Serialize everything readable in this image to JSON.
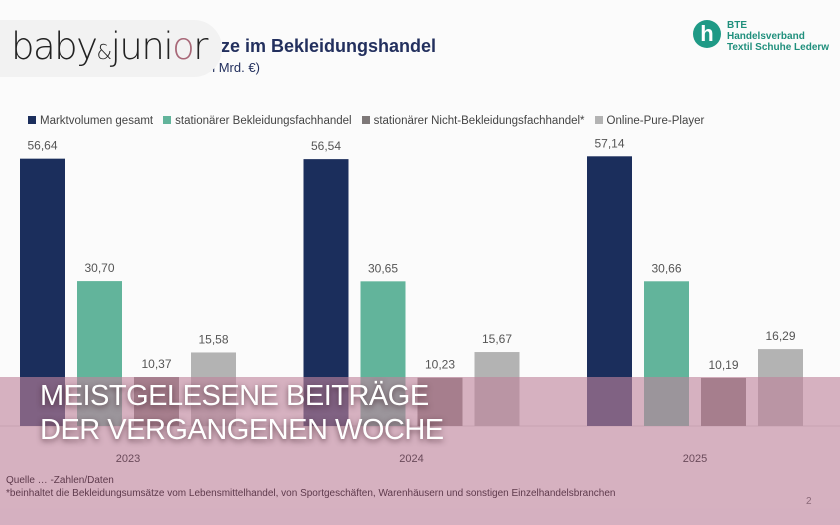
{
  "brand": {
    "logo_text": "baby&junior"
  },
  "slide": {
    "title_fragment": "ätze im Bekleidungshandel",
    "subtitle_fragment": "in Mrd. €)",
    "bte_logo": {
      "lines": [
        "BTE",
        "Handelsverband",
        "Textil  Schuhe  Lederw"
      ],
      "mark": "h"
    },
    "source_line": "Quelle … -Zahlen/Daten",
    "footnote": "*beinhaltet die Bekleidungsumsätze vom Lebensmittelhandel, von Sportgeschäften, Warenhäusern und sonstigen Einzelhandelsbranchen",
    "page_number": "2"
  },
  "overlay": {
    "line1": "MEISTGELESENE BEITRÄGE",
    "line2": "DER VERGANGENEN WOCHE"
  },
  "chart_data": {
    "type": "bar",
    "categories": [
      "2023",
      "2024",
      "2025"
    ],
    "series": [
      {
        "name": "Marktvolumen gesamt",
        "color": "#1b2e5c",
        "values": [
          56.64,
          56.54,
          57.14
        ],
        "labels": [
          "56,64",
          "56,54",
          "57,14"
        ]
      },
      {
        "name": "stationärer Bekleidungsfachhandel",
        "color": "#62b49b",
        "values": [
          30.7,
          30.65,
          30.66
        ],
        "labels": [
          "30,70",
          "30,65",
          "30,66"
        ]
      },
      {
        "name": "stationärer Nicht-Bekleidungsfachhandel*",
        "color": "#7e7878",
        "values": [
          10.37,
          10.23,
          10.19
        ],
        "labels": [
          "10,37",
          "10,23",
          "10,19"
        ]
      },
      {
        "name": "Online-Pure-Player",
        "color": "#b3b3b3",
        "values": [
          15.58,
          15.67,
          16.29
        ],
        "labels": [
          "15,58",
          "15,67",
          "16,29"
        ]
      }
    ],
    "legend_position": "top",
    "grid": false,
    "ylim": [
      0,
      60
    ]
  }
}
